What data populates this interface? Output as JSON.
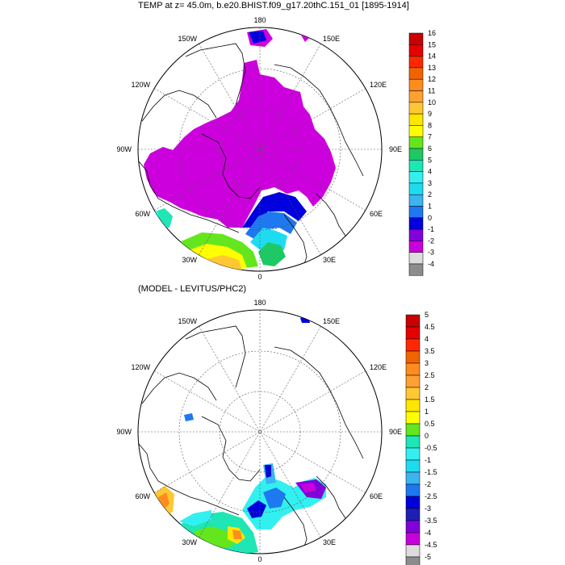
{
  "top_panel": {
    "title": "TEMP at z=  45.0m, b.e20.BHIST.f09_g17.20thC.151_01 [1895-1914]",
    "lon_labels": {
      "lon_180": "180",
      "lon_150e": "150E",
      "lon_120e": "120E",
      "lon_90e": "90E",
      "lon_60e": "60E",
      "lon_30e": "30E",
      "lon_0": "0",
      "lon_30w": "30W",
      "lon_60w": "60W",
      "lon_90w": "90W",
      "lon_120w": "120W",
      "lon_150w": "150W"
    },
    "colorbar": {
      "labels": [
        "16",
        "15",
        "14",
        "13",
        "12",
        "11",
        "10",
        "9",
        "8",
        "7",
        "6",
        "5",
        "4",
        "3",
        "2",
        "1",
        "0",
        "-1",
        "-2",
        "-3",
        "-4"
      ],
      "colors": [
        "#c80000",
        "#e60000",
        "#ff2800",
        "#f06400",
        "#ff8c1e",
        "#ffa032",
        "#ffc832",
        "#ffe600",
        "#ffff00",
        "#64e61e",
        "#1ec864",
        "#1ee6b4",
        "#32f0f0",
        "#1edcf0",
        "#3cb4f0",
        "#1e78f0",
        "#0000dc",
        "#8200dc",
        "#c800dc",
        "#dcdcdc",
        "#8c8c8c"
      ]
    }
  },
  "bottom_panel": {
    "title": "(MODEL - LEVITUS/PHC2)",
    "lon_labels": {
      "lon_180": "180",
      "lon_150e": "150E",
      "lon_120e": "120E",
      "lon_90e": "90E",
      "lon_60e": "60E",
      "lon_30e": "30E",
      "lon_0": "0",
      "lon_30w": "30W",
      "lon_60w": "60W",
      "lon_90w": "90W",
      "lon_120w": "120W",
      "lon_150w": "150W"
    },
    "colorbar": {
      "labels": [
        "5",
        "4.5",
        "4",
        "3.5",
        "3",
        "2.5",
        "2",
        "1.5",
        "1",
        "0.5",
        "0",
        "-0.5",
        "-1",
        "-1.5",
        "-2",
        "-2.5",
        "-3",
        "-3.5",
        "-4",
        "-4.5",
        "-5"
      ],
      "colors": [
        "#c80000",
        "#e60000",
        "#ff2800",
        "#f06400",
        "#ff8c1e",
        "#ffa032",
        "#ffc832",
        "#ffe600",
        "#ffff00",
        "#64e61e",
        "#1ee6b4",
        "#32f0f0",
        "#1edcf0",
        "#3cb4f0",
        "#1e78f0",
        "#0000dc",
        "#1e1eb4",
        "#8200dc",
        "#c800dc",
        "#dcdcdc",
        "#8c8c8c"
      ]
    }
  },
  "colors": {
    "land_outline": "#000000",
    "ice_magenta": "#cc00dd",
    "grid_line": "#555555"
  }
}
